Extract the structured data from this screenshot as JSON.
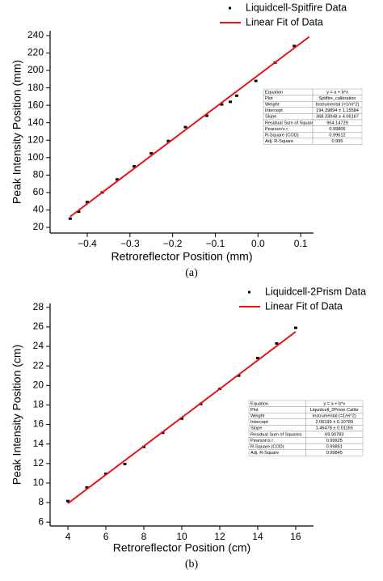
{
  "chart_data": [
    {
      "type": "scatter",
      "caption": "(a)",
      "x_label": "Retroreflector Position (mm)",
      "y_label": "Peak Intensity Position (mm)",
      "xlim": [
        -0.487,
        0.13
      ],
      "ylim": [
        13.5,
        245.5
      ],
      "xticks": [
        {
          "value": -0.4,
          "label": "−0.4"
        },
        {
          "value": -0.3,
          "label": "−0.3"
        },
        {
          "value": -0.2,
          "label": "−0.2"
        },
        {
          "value": -0.1,
          "label": "−0.1"
        },
        {
          "value": 0,
          "label": "0.0"
        },
        0.1
      ],
      "yticks": [
        20,
        40,
        60,
        80,
        100,
        120,
        140,
        160,
        180,
        200,
        220,
        240
      ],
      "series": [
        {
          "name": "Liquidcell-Spitfire Data",
          "color": "#000000",
          "mode": "markers",
          "x": [
            -0.44,
            -0.42,
            -0.4,
            -0.365,
            -0.33,
            -0.29,
            -0.25,
            -0.21,
            -0.17,
            -0.12,
            -0.085,
            -0.065,
            -0.05,
            -0.005,
            0.04,
            0.085
          ],
          "values": [
            30,
            38,
            49,
            60,
            75,
            90,
            105,
            119,
            135,
            148,
            161,
            164,
            171,
            188,
            209,
            228
          ]
        },
        {
          "name": "Linear Fit of Data",
          "color": "#e8141b",
          "mode": "line",
          "x": [
            -0.44,
            0.12
          ],
          "values": [
            32.3,
            238.6
          ]
        }
      ],
      "fit_table": [
        [
          "Equation",
          "y = a + b*x"
        ],
        [
          "Plot",
          "Spitfire_calibration"
        ],
        [
          "Weight",
          "Instrumental (=1/ei^2)"
        ],
        [
          "Intercept",
          "194.39894 ± 1.15584"
        ],
        [
          "Slope",
          "368.33048 ± 4.06167"
        ],
        [
          "Residual Sum of Squares",
          "964.14729"
        ],
        [
          "Pearson's r",
          "0.99806"
        ],
        [
          "R-Square (COD)",
          "0.99612"
        ],
        [
          "Adj. R-Square",
          "0.996"
        ]
      ]
    },
    {
      "type": "scatter",
      "caption": "(b)",
      "x_label": "Retroreflector Position (cm)",
      "y_label": "Peak Intensity Position (cm)",
      "xlim": [
        3.06,
        16.94
      ],
      "ylim": [
        5.6,
        28.4
      ],
      "xticks": [
        4,
        6,
        8,
        10,
        12,
        14,
        16
      ],
      "yticks": [
        6,
        8,
        10,
        12,
        14,
        16,
        18,
        20,
        22,
        24,
        26,
        28
      ],
      "series": [
        {
          "name": "Liquidcell-2Prism Data",
          "color": "#000000",
          "mode": "markers",
          "x": [
            4,
            5,
            6,
            7,
            8,
            9,
            10,
            11,
            12,
            13,
            14,
            15,
            16
          ],
          "values": [
            8.15,
            9.55,
            10.95,
            11.95,
            13.7,
            15.15,
            16.6,
            18.1,
            19.65,
            21.0,
            22.8,
            24.3,
            25.9
          ]
        },
        {
          "name": "Linear Fit of Data",
          "color": "#e8141b",
          "mode": "line",
          "x": [
            4,
            16
          ],
          "values": [
            7.92,
            25.5
          ]
        }
      ],
      "fit_table": [
        [
          "Equation",
          "y = a + b*x"
        ],
        [
          "Plot",
          "Liquidcell_2Prism Calibr"
        ],
        [
          "Weight",
          "Instrumental (=1/ei^2)"
        ],
        [
          "Intercept",
          "2.06199 ± 0.10789"
        ],
        [
          "Slope",
          "1.46478 ± 0.01155"
        ],
        [
          "Residual Sum of Squares",
          "69.90783"
        ],
        [
          "Pearson's r",
          "0.99925"
        ],
        [
          "R-Square (COD)",
          "0.99851"
        ],
        [
          "Adj. R-Square",
          "0.99845"
        ]
      ]
    }
  ]
}
